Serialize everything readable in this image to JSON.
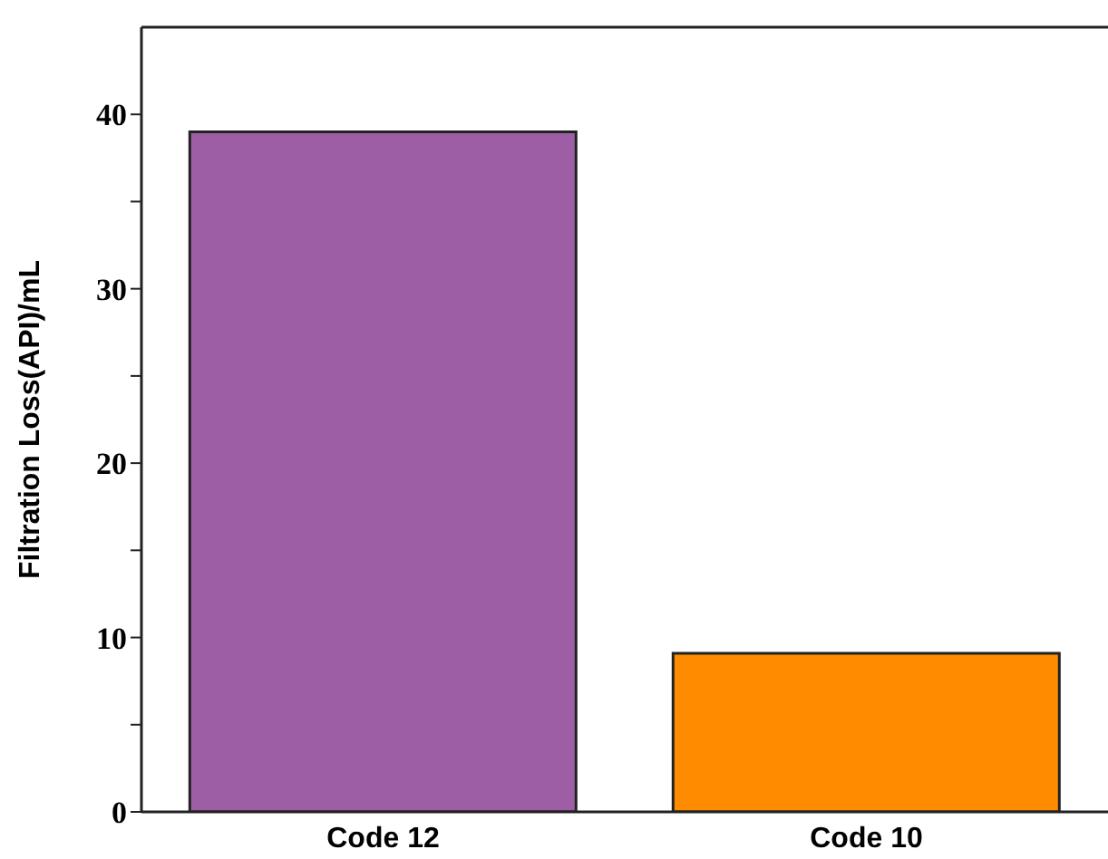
{
  "chart_data": {
    "type": "bar",
    "ylabel": "Filtration Loss(API)/mL",
    "categories": [
      "Code 12",
      "Code 10"
    ],
    "values": [
      39,
      9.1
    ],
    "colors": [
      "#9e5ea6",
      "#ff8c00"
    ],
    "ylim": [
      0,
      45
    ],
    "yticks": [
      0,
      {
        "value": 5,
        "label": null
      },
      10,
      {
        "value": 15,
        "label": null
      },
      20,
      {
        "value": 25,
        "label": null
      },
      30,
      {
        "value": 35,
        "label": null
      },
      40
    ],
    "grid": false,
    "legend": false
  }
}
